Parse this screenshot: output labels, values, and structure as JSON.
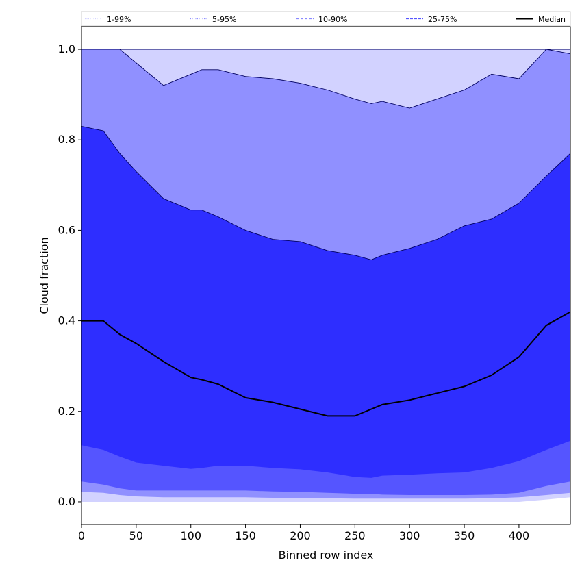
{
  "chart_data": {
    "type": "area",
    "xlabel": "Binned row index",
    "ylabel": "Cloud fraction",
    "xlim": [
      0,
      447
    ],
    "ylim": [
      -0.05,
      1.05
    ],
    "x_ticks": [
      0,
      50,
      100,
      150,
      200,
      250,
      300,
      350,
      400
    ],
    "y_ticks": [
      0.0,
      0.2,
      0.4,
      0.6,
      0.8,
      1.0
    ],
    "y_tick_labels": [
      "0.0",
      "0.2",
      "0.4",
      "0.6",
      "0.8",
      "1.0"
    ],
    "grid": false,
    "legend_position": "top",
    "x": [
      0,
      20,
      35,
      50,
      75,
      100,
      110,
      125,
      150,
      175,
      200,
      225,
      250,
      265,
      275,
      300,
      325,
      350,
      375,
      400,
      425,
      447
    ],
    "bands": [
      {
        "name": "1-99%",
        "color": "#d2d2ff",
        "lower": [
          0.0,
          0.0,
          0.0,
          0.0,
          0.0,
          0.0,
          0.0,
          0.0,
          0.0,
          0.0,
          0.0,
          0.0,
          0.0,
          0.0,
          0.0,
          0.0,
          0.0,
          0.0,
          0.0,
          0.0,
          0.005,
          0.01
        ],
        "upper": [
          1.0,
          1.0,
          1.0,
          1.0,
          1.0,
          1.0,
          1.0,
          1.0,
          1.0,
          1.0,
          1.0,
          1.0,
          1.0,
          1.0,
          1.0,
          1.0,
          1.0,
          1.0,
          1.0,
          1.0,
          1.0,
          1.0
        ]
      },
      {
        "name": "5-95%",
        "color": "#9090ff",
        "lower": [
          0.022,
          0.02,
          0.015,
          0.012,
          0.01,
          0.01,
          0.01,
          0.01,
          0.01,
          0.009,
          0.008,
          0.008,
          0.007,
          0.007,
          0.007,
          0.007,
          0.007,
          0.007,
          0.008,
          0.01,
          0.015,
          0.02
        ],
        "upper": [
          1.0,
          1.0,
          1.0,
          0.97,
          0.92,
          0.945,
          0.955,
          0.955,
          0.94,
          0.935,
          0.925,
          0.91,
          0.89,
          0.88,
          0.885,
          0.87,
          0.89,
          0.91,
          0.945,
          0.935,
          1.0,
          0.99
        ]
      },
      {
        "name": "10-90%",
        "color": "#5555ff",
        "lower": [
          0.045,
          0.038,
          0.03,
          0.025,
          0.025,
          0.025,
          0.025,
          0.025,
          0.025,
          0.023,
          0.022,
          0.02,
          0.018,
          0.018,
          0.016,
          0.015,
          0.015,
          0.015,
          0.016,
          0.02,
          0.035,
          0.045
        ],
        "upper": [
          0.83,
          0.82,
          0.77,
          0.73,
          0.67,
          0.645,
          0.645,
          0.63,
          0.6,
          0.58,
          0.575,
          0.555,
          0.545,
          0.535,
          0.545,
          0.56,
          0.58,
          0.61,
          0.625,
          0.66,
          0.72,
          0.77
        ]
      },
      {
        "name": "25-75%",
        "color": "#2e2eff",
        "lower": [
          0.125,
          0.115,
          0.1,
          0.087,
          0.08,
          0.073,
          0.075,
          0.08,
          0.08,
          0.075,
          0.072,
          0.065,
          0.055,
          0.053,
          0.058,
          0.06,
          0.063,
          0.065,
          0.075,
          0.09,
          0.115,
          0.135
        ],
        "upper": [
          0.83,
          0.82,
          0.77,
          0.73,
          0.67,
          0.645,
          0.645,
          0.63,
          0.6,
          0.58,
          0.575,
          0.555,
          0.545,
          0.535,
          0.545,
          0.56,
          0.58,
          0.61,
          0.625,
          0.66,
          0.72,
          0.77
        ]
      }
    ],
    "median": {
      "name": "Median",
      "color": "#000000",
      "values": [
        0.4,
        0.4,
        0.37,
        0.35,
        0.31,
        0.275,
        0.27,
        0.26,
        0.23,
        0.22,
        0.205,
        0.19,
        0.19,
        0.205,
        0.215,
        0.225,
        0.24,
        0.255,
        0.28,
        0.32,
        0.39,
        0.42
      ]
    },
    "legend": [
      {
        "label": "1-99%",
        "color": "#d2d2ff",
        "style": "dotted"
      },
      {
        "label": "5-95%",
        "color": "#9090ff",
        "style": "dotted"
      },
      {
        "label": "10-90%",
        "color": "#8888ff",
        "style": "dashed"
      },
      {
        "label": "25-75%",
        "color": "#5555ff",
        "style": "dashed"
      },
      {
        "label": "Median",
        "color": "#000000",
        "style": "solid"
      }
    ]
  }
}
